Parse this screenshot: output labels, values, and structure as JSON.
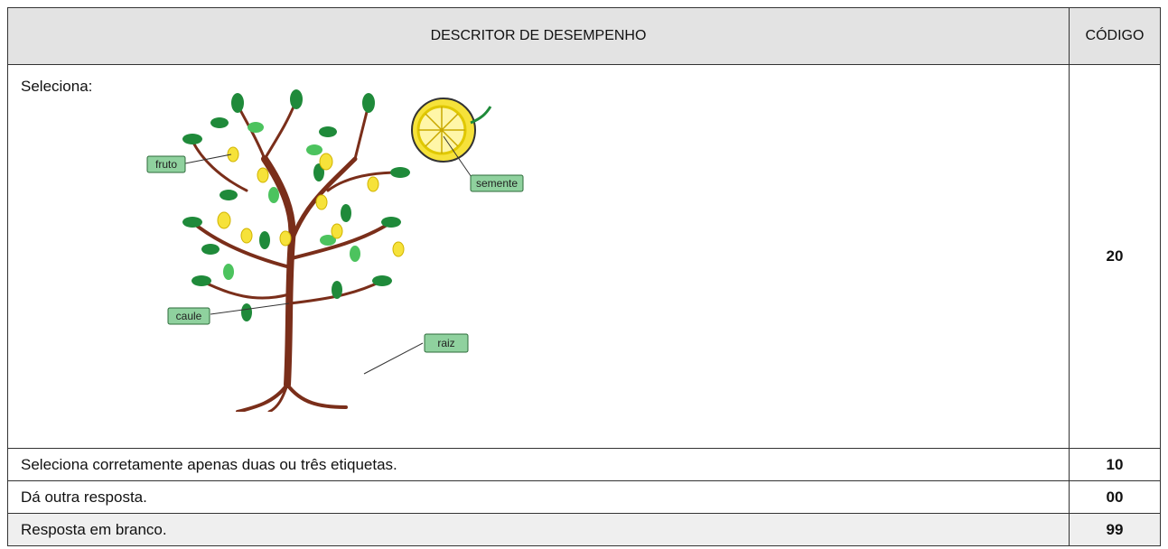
{
  "table": {
    "header": [
      "DESCRITOR DE DESEMPENHO",
      "CÓDIGO"
    ],
    "rows": [
      [
        "Seleciona:",
        "20"
      ],
      [
        "Seleciona corretamente apenas duas ou três etiquetas.",
        "10"
      ],
      [
        "Dá outra resposta.",
        "00"
      ],
      [
        "Resposta em branco.",
        "99"
      ]
    ]
  },
  "illustration": {
    "labels": [
      "fruto",
      "semente",
      "caule",
      "raiz"
    ]
  }
}
